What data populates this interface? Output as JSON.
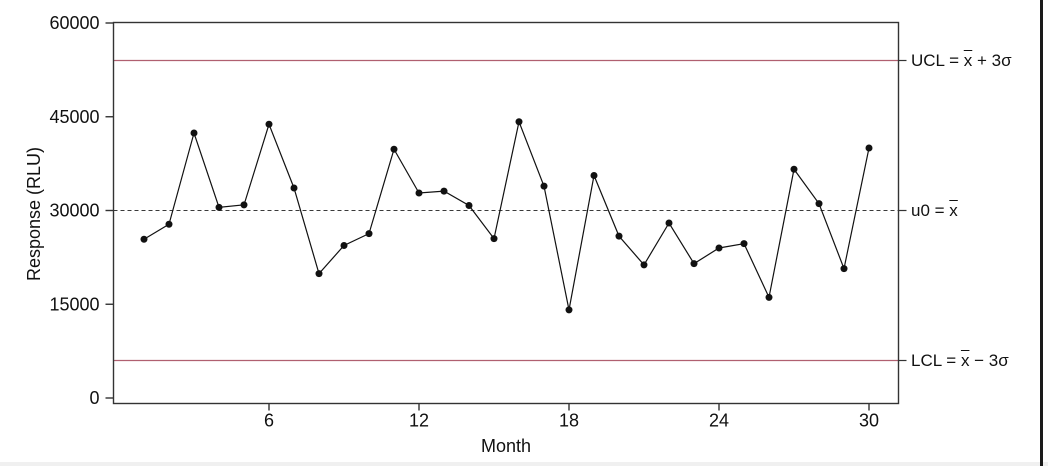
{
  "chart_data": {
    "type": "line",
    "title": "",
    "xlabel": "Month",
    "ylabel": "Response (RLU)",
    "x": [
      1,
      2,
      3,
      4,
      5,
      6,
      7,
      8,
      9,
      10,
      11,
      12,
      13,
      14,
      15,
      16,
      17,
      18,
      19,
      20,
      21,
      22,
      23,
      24,
      25,
      26,
      27,
      28,
      29,
      30
    ],
    "values": [
      25400,
      27800,
      42400,
      30500,
      30900,
      43800,
      33600,
      19900,
      24400,
      26300,
      39800,
      32800,
      33100,
      30800,
      25500,
      44200,
      33900,
      14100,
      35600,
      25900,
      21300,
      28000,
      21500,
      24000,
      24700,
      16100,
      36600,
      31100,
      20700,
      40000
    ],
    "ylim": [
      0,
      60000
    ],
    "yticks": [
      0,
      15000,
      30000,
      45000,
      60000
    ],
    "ytick_labels": [
      "0",
      "15000",
      "30000",
      "45000",
      "60000"
    ],
    "xticks": [
      6,
      12,
      18,
      24,
      30
    ],
    "xtick_labels": [
      "6",
      "12",
      "18",
      "24",
      "30"
    ],
    "grid": false,
    "legend": "none",
    "marker": "filled-circle",
    "series_color": "#111111",
    "axis_color": "#333333",
    "center_line": {
      "value": 30000,
      "style": "dashed",
      "color": "#3a3a3a",
      "label": {
        "prefix": "u0 = ",
        "xbar": "x",
        "suffix": ""
      }
    },
    "control_lines": [
      {
        "name": "UCL",
        "value": 54000,
        "color": "#b06070",
        "label": {
          "prefix": "UCL = ",
          "xbar": "x",
          "suffix": " + 3σ"
        }
      },
      {
        "name": "LCL",
        "value": 6000,
        "color": "#b06070",
        "label": {
          "prefix": "LCL = ",
          "xbar": "x",
          "suffix": " − 3σ"
        }
      }
    ]
  }
}
